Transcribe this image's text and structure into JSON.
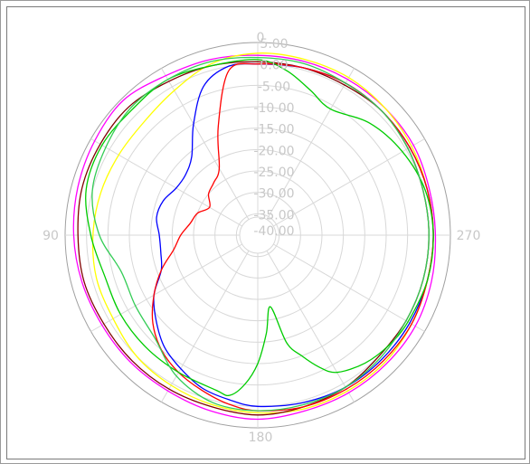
{
  "chart_data": {
    "type": "polar",
    "title": "",
    "angle_direction": "counterclockwise",
    "zero_at": "top",
    "angle_labels": [
      "0",
      "90",
      "180",
      "270"
    ],
    "radial_ticks": [
      "-40.00",
      "-35.00",
      "-30.00",
      "-25.00",
      "-20.00",
      "-15.00",
      "-10.00",
      "-5.00",
      "0.00",
      "5.00"
    ],
    "rlim": [
      -40,
      5
    ],
    "radial_gridlines": true,
    "angular_spokes_deg": 30,
    "grid": true,
    "series": [
      {
        "color": "#ff00ff",
        "theta": [
          0,
          15,
          30,
          45,
          60,
          75,
          90,
          105,
          120,
          135,
          150,
          165,
          180,
          195,
          210,
          225,
          240,
          255,
          270,
          285,
          300,
          315,
          330,
          345
        ],
        "r": [
          2.0,
          2.5,
          3.0,
          4.5,
          4.0,
          3.5,
          3.0,
          2.5,
          2.0,
          2.0,
          2.0,
          2.5,
          3.0,
          2.5,
          2.5,
          2.5,
          2.5,
          2.0,
          1.5,
          1.5,
          2.0,
          2.0,
          2.0,
          2.0
        ]
      },
      {
        "color": "#ffff00",
        "theta": [
          0,
          15,
          30,
          45,
          60,
          75,
          90,
          105,
          120,
          135,
          150,
          165,
          180,
          195,
          210,
          225,
          240,
          255,
          270,
          285,
          300,
          315,
          330,
          345
        ],
        "r": [
          2.5,
          1.5,
          -1.0,
          -2.5,
          -2.5,
          -2.0,
          -1.5,
          -1.0,
          -1.0,
          0.0,
          0.5,
          1.0,
          1.5,
          2.0,
          2.0,
          2.0,
          1.5,
          1.0,
          1.0,
          1.0,
          1.5,
          2.0,
          2.5,
          2.5
        ]
      },
      {
        "color": "#800000",
        "theta": [
          0,
          15,
          30,
          45,
          60,
          75,
          90,
          105,
          120,
          135,
          150,
          165,
          180,
          195,
          210,
          225,
          240,
          255,
          270,
          285,
          300,
          315,
          330,
          345
        ],
        "r": [
          0.5,
          1.0,
          1.5,
          2.5,
          2.5,
          2.5,
          2.0,
          2.0,
          1.5,
          1.5,
          1.5,
          1.5,
          2.0,
          1.5,
          1.0,
          0.0,
          0.0,
          0.0,
          0.0,
          0.0,
          0.5,
          1.0,
          0.5,
          0.5
        ]
      },
      {
        "color": "#0000ff",
        "theta": [
          0,
          10,
          20,
          30,
          40,
          50,
          60,
          70,
          80,
          90,
          100,
          110,
          120,
          130,
          140,
          150,
          160,
          170,
          180,
          195,
          210,
          225,
          240,
          255,
          270,
          285,
          300,
          315,
          330,
          345
        ],
        "r": [
          0.0,
          0.0,
          -3.0,
          -10.0,
          -16.0,
          -18.0,
          -18.0,
          -16.5,
          -16.0,
          -17.0,
          -17.0,
          -16.0,
          -12.0,
          -9.0,
          -6.0,
          -4.0,
          -2.0,
          -1.0,
          0.0,
          0.5,
          1.0,
          1.0,
          1.0,
          1.0,
          1.0,
          1.0,
          1.0,
          1.0,
          1.0,
          0.5
        ]
      },
      {
        "color": "#ff0000",
        "theta": [
          0,
          10,
          20,
          30,
          40,
          50,
          60,
          70,
          80,
          90,
          100,
          110,
          120,
          130,
          140,
          150,
          160,
          170,
          180,
          195,
          210,
          225,
          240,
          255,
          270,
          285,
          300,
          315,
          330,
          345
        ],
        "r": [
          0.0,
          -1.0,
          -13.0,
          -22.0,
          -24.0,
          -25.0,
          -27.0,
          -25.0,
          -24.0,
          -22.0,
          -20.0,
          -16.0,
          -12.0,
          -8.0,
          -5.0,
          -3.0,
          -1.5,
          0.0,
          1.0,
          1.5,
          1.5,
          1.5,
          1.5,
          1.0,
          1.0,
          1.0,
          1.0,
          1.0,
          1.0,
          0.5
        ]
      },
      {
        "color": "#00cc00",
        "theta": [
          0,
          15,
          30,
          45,
          60,
          75,
          90,
          105,
          120,
          135,
          150,
          165,
          170,
          175,
          180,
          185,
          190,
          195,
          200,
          205,
          210,
          220,
          230,
          240,
          255,
          270,
          285,
          300,
          315,
          330,
          340,
          350
        ],
        "r": [
          1.0,
          1.0,
          2.0,
          1.5,
          2.0,
          1.5,
          -1.0,
          -3.0,
          -3.0,
          -3.0,
          -3.0,
          -2.5,
          -2.0,
          -5.0,
          -10.0,
          -17.0,
          -23.0,
          -14.0,
          -10.0,
          -6.0,
          -3.0,
          -1.0,
          0.0,
          0.5,
          1.0,
          1.0,
          0.5,
          -1.0,
          -3.0,
          -6.0,
          -4.0,
          -1.0
        ]
      },
      {
        "color": "#33cc55",
        "theta": [
          0,
          15,
          30,
          45,
          60,
          75,
          90,
          105,
          120,
          135,
          150,
          165,
          180,
          195,
          210,
          225,
          240,
          255,
          270,
          285,
          300,
          315,
          330,
          345
        ],
        "r": [
          1.5,
          2.0,
          2.0,
          2.0,
          1.0,
          0.0,
          -3.0,
          -7.0,
          -7.0,
          -6.0,
          -2.0,
          0.5,
          1.0,
          1.0,
          1.0,
          0.5,
          0.0,
          0.0,
          0.0,
          0.0,
          0.5,
          1.0,
          1.0,
          1.5
        ]
      }
    ]
  }
}
